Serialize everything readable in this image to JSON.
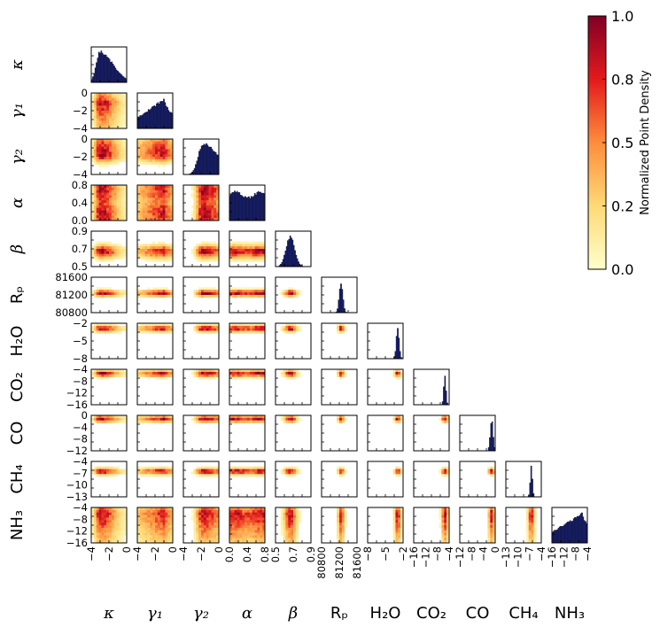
{
  "chart_data": {
    "type": "corner",
    "parameters": [
      {
        "label": "κ",
        "range": [
          -4,
          0
        ],
        "ticks": [
          "−4",
          "−2",
          "0"
        ],
        "mode": 0.25,
        "width": 0.18,
        "style": "skewed"
      },
      {
        "label": "γ₁",
        "range": [
          -4,
          2
        ],
        "ticks": [
          "−4",
          "−2",
          "0"
        ],
        "mode": 0.75,
        "width": 0.22,
        "style": "rising"
      },
      {
        "label": "γ₂",
        "range": [
          -4,
          2
        ],
        "ticks": [
          "−4",
          "−2",
          "0"
        ],
        "mode": 0.55,
        "width": 0.22,
        "style": "skewed"
      },
      {
        "label": "α",
        "range": [
          0,
          1
        ],
        "ticks": [
          "0.0",
          "0.4",
          "0.8"
        ],
        "mode": 0.5,
        "width": 0.5,
        "style": "flat"
      },
      {
        "label": "β",
        "range": [
          0.5,
          0.95
        ],
        "ticks": [
          "0.5",
          "0.7",
          "0.9"
        ],
        "mode": 0.42,
        "width": 0.12,
        "style": "peak"
      },
      {
        "label": "Rₚ",
        "range": [
          80800,
          81800
        ],
        "ticks": [
          "80800",
          "81200",
          "81600"
        ],
        "mode": 0.55,
        "width": 0.05,
        "style": "spike"
      },
      {
        "label": "H₂O",
        "range": [
          -8,
          -1
        ],
        "ticks": [
          "−8",
          "−5",
          "−2"
        ],
        "mode": 0.85,
        "width": 0.04,
        "style": "spike"
      },
      {
        "label": "CO₂",
        "range": [
          -16,
          -3
        ],
        "ticks": [
          "−16",
          "−12",
          "−8",
          "−4"
        ],
        "mode": 0.88,
        "width": 0.03,
        "style": "spike"
      },
      {
        "label": "CO",
        "range": [
          -12,
          0
        ],
        "ticks": [
          "−12",
          "−8",
          "−4",
          "0"
        ],
        "mode": 0.9,
        "width": 0.04,
        "style": "spike"
      },
      {
        "label": "CH₄",
        "range": [
          -13,
          -3
        ],
        "ticks": [
          "−13",
          "−10",
          "−7",
          "−4"
        ],
        "mode": 0.72,
        "width": 0.03,
        "style": "spike"
      },
      {
        "label": "NH₃",
        "range": [
          -18,
          -3
        ],
        "ticks": [
          "−16",
          "−12",
          "−8",
          "−4"
        ],
        "mode": 0.85,
        "width": 0.5,
        "style": "rising"
      }
    ],
    "colorbar": {
      "label": "Normalized Point Density",
      "range": [
        0.0,
        1.0
      ],
      "ticks": [
        "0.0",
        "0.2",
        "0.5",
        "0.8",
        "1.0"
      ],
      "colormap": "YlOrRd"
    },
    "histogram_color": "#1a237e",
    "contour_color": "#9e9e9e"
  }
}
